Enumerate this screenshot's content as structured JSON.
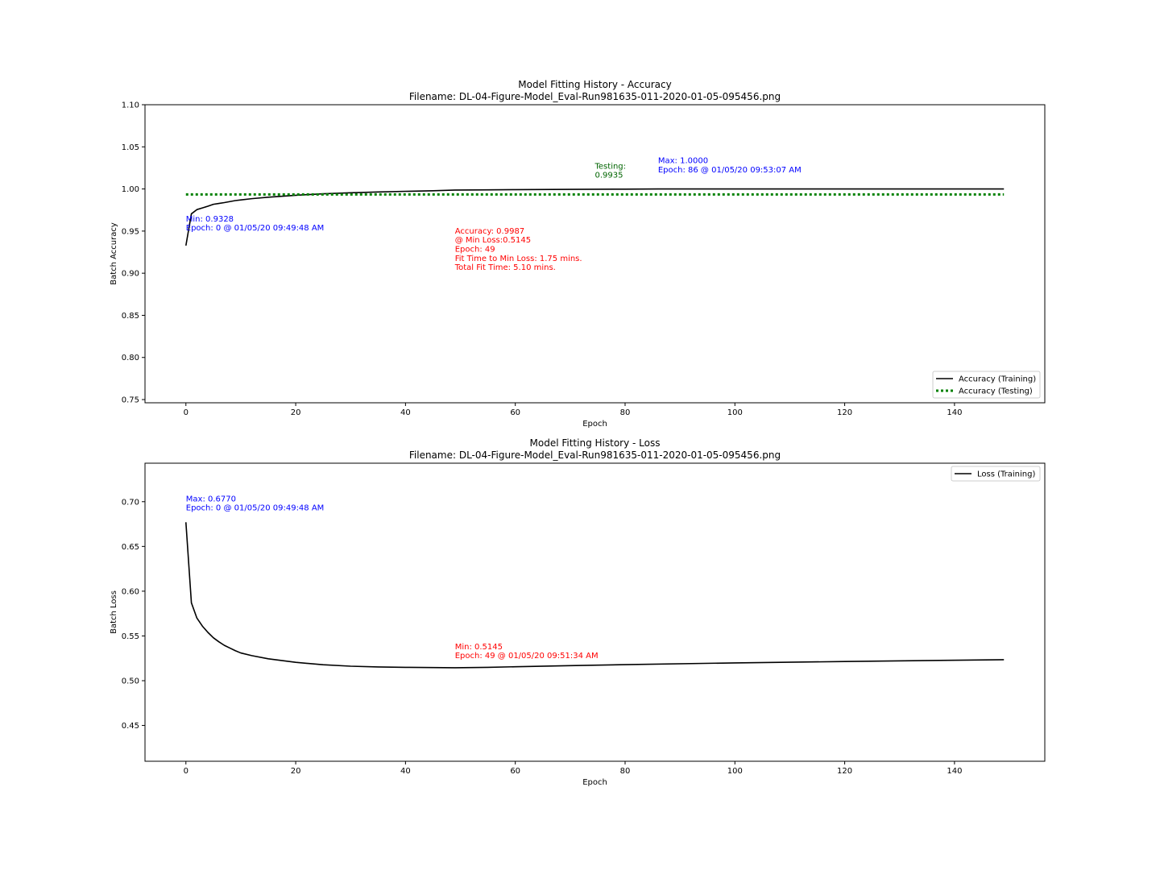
{
  "colors": {
    "training": "#000000",
    "testing": "#008000",
    "annotation_extreme": "#0000ff",
    "annotation_summary": "#ff0000",
    "annotation_testing": "#006400"
  },
  "chart_data": [
    {
      "type": "line",
      "title": "Model Fitting History - Accuracy",
      "subtitle": "Filename: DL-04-Figure-Model_Eval-Run981635-011-2020-01-05-095456.png",
      "xlabel": "Epoch",
      "ylabel": "Batch Accuracy",
      "xlim": [
        -7.45,
        156.45
      ],
      "ylim": [
        0.7462,
        1.1
      ],
      "xticks": [
        0,
        20,
        40,
        60,
        80,
        100,
        120,
        140
      ],
      "xtick_labels": [
        "0",
        "20",
        "40",
        "60",
        "80",
        "100",
        "120",
        "140"
      ],
      "yticks": [
        0.75,
        0.8,
        0.85,
        0.9,
        0.95,
        1.0,
        1.05,
        1.1
      ],
      "ytick_labels": [
        "0.75",
        "0.80",
        "0.85",
        "0.90",
        "0.95",
        "1.00",
        "1.05",
        "1.10"
      ],
      "grid": false,
      "legend_position": "lower right",
      "series": [
        {
          "name": "Accuracy (Training)",
          "style": "solid",
          "x": [
            0,
            1,
            2,
            3,
            4,
            5,
            6,
            7,
            8,
            9,
            10,
            12,
            15,
            20,
            25,
            30,
            35,
            40,
            45,
            49,
            55,
            60,
            70,
            80,
            86,
            100,
            120,
            149
          ],
          "values": [
            0.9328,
            0.9705,
            0.9755,
            0.9775,
            0.9795,
            0.9818,
            0.9828,
            0.9838,
            0.985,
            0.9862,
            0.987,
            0.9885,
            0.9902,
            0.9925,
            0.9943,
            0.9955,
            0.9964,
            0.9972,
            0.9979,
            0.9987,
            0.9989,
            0.9992,
            0.9995,
            0.9998,
            1.0,
            1.0,
            1.0,
            1.0
          ]
        },
        {
          "name": "Accuracy (Testing)",
          "style": "dotted",
          "x": [
            0,
            149
          ],
          "values": [
            0.9935,
            0.9935
          ]
        }
      ],
      "annotations": [
        {
          "x": 0,
          "y": 0.9328,
          "lines": [
            "Min: 0.9328",
            "Epoch: 0 @ 01/05/20 09:49:48 AM"
          ],
          "color_key": "annotation_extreme"
        },
        {
          "x": 86,
          "y": 1.0,
          "lines": [
            "Max: 1.0000",
            "Epoch: 86 @ 01/05/20 09:53:07 AM"
          ],
          "color_key": "annotation_extreme"
        },
        {
          "x": 74.5,
          "y": 0.9935,
          "lines": [
            "Testing:",
            "0.9935"
          ],
          "color_key": "annotation_testing"
        },
        {
          "x": 49,
          "y": 0.9987,
          "lines": [
            "Accuracy: 0.9987",
            "@ Min Loss:0.5145",
            "Epoch: 49",
            "Fit Time to Min Loss: 1.75 mins.",
            "Total Fit Time: 5.10 mins."
          ],
          "color_key": "annotation_summary"
        }
      ]
    },
    {
      "type": "line",
      "title": "Model Fitting History - Loss",
      "subtitle": "Filename: DL-04-Figure-Model_Eval-Run981635-011-2020-01-05-095456.png",
      "xlabel": "Epoch",
      "ylabel": "Batch Loss",
      "xlim": [
        -7.45,
        156.45
      ],
      "ylim": [
        0.41,
        0.743
      ],
      "xticks": [
        0,
        20,
        40,
        60,
        80,
        100,
        120,
        140
      ],
      "xtick_labels": [
        "0",
        "20",
        "40",
        "60",
        "80",
        "100",
        "120",
        "140"
      ],
      "yticks": [
        0.45,
        0.5,
        0.55,
        0.6,
        0.65,
        0.7
      ],
      "ytick_labels": [
        "0.45",
        "0.50",
        "0.55",
        "0.60",
        "0.65",
        "0.70"
      ],
      "grid": false,
      "legend_position": "upper right",
      "series": [
        {
          "name": "Loss (Training)",
          "style": "solid",
          "x": [
            0,
            1,
            2,
            3,
            4,
            5,
            6,
            7,
            8,
            9,
            10,
            12,
            15,
            20,
            25,
            30,
            35,
            40,
            45,
            49,
            55,
            60,
            70,
            80,
            100,
            120,
            149
          ],
          "values": [
            0.677,
            0.587,
            0.57,
            0.561,
            0.554,
            0.548,
            0.5435,
            0.5395,
            0.5365,
            0.5335,
            0.531,
            0.528,
            0.5245,
            0.5205,
            0.5178,
            0.5162,
            0.5154,
            0.5149,
            0.5147,
            0.5145,
            0.5149,
            0.5156,
            0.5168,
            0.5179,
            0.5199,
            0.5214,
            0.5235
          ]
        }
      ],
      "annotations": [
        {
          "x": 0,
          "y": 0.677,
          "lines": [
            "Max: 0.6770",
            "Epoch: 0 @ 01/05/20 09:49:48 AM"
          ],
          "color_key": "annotation_extreme"
        },
        {
          "x": 49,
          "y": 0.5145,
          "lines": [
            "Min: 0.5145",
            "Epoch: 49 @ 01/05/20 09:51:34 AM"
          ],
          "color_key": "annotation_summary"
        }
      ]
    }
  ]
}
